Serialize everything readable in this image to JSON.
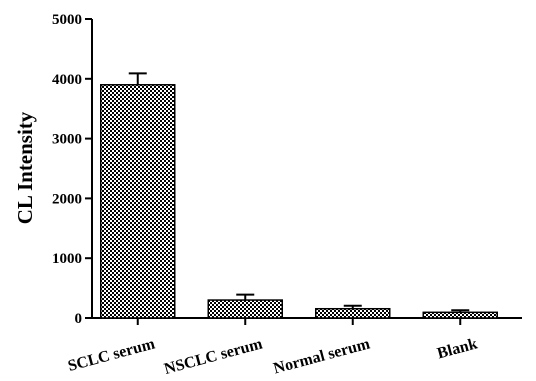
{
  "chart_data": {
    "type": "bar",
    "title": "",
    "xlabel": "",
    "ylabel": "CL Intensity",
    "categories": [
      "SCLC serum",
      "NSCLC serum",
      "Normal serum",
      "Blank"
    ],
    "values": [
      3900,
      300,
      155,
      95
    ],
    "error": [
      190,
      90,
      50,
      35
    ],
    "ylim": [
      0,
      5000
    ],
    "yticks": [
      0,
      1000,
      2000,
      3000,
      4000,
      5000
    ],
    "grid": false,
    "legend": "none",
    "bar_fill": "checkered black and white",
    "colors": {
      "bar_dark": "#000000",
      "bar_light": "#ffffff",
      "axis": "#000000"
    }
  }
}
